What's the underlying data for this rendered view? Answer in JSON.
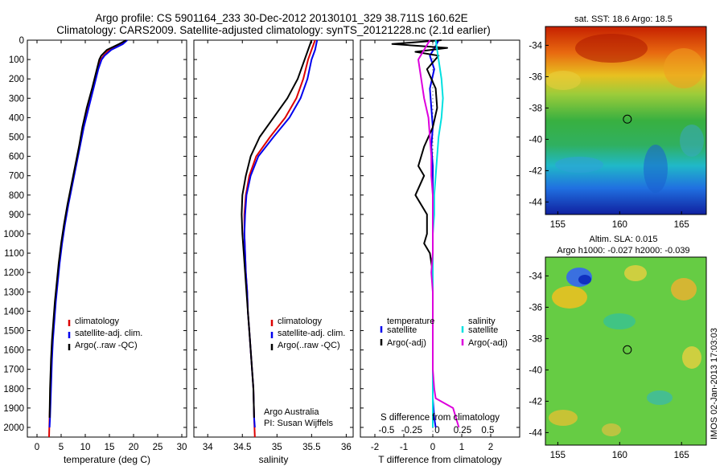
{
  "header": {
    "line1": "Argo profile: CS 5901164_233 30-Dec-2012 20130101_329 38.711S 160.62E",
    "line2": "Climatology: CARS2009. Satellite-adjusted climatology: synTS_20121228.nc (2.1d earlier)"
  },
  "side_label": "IMOS 02-Jan-2013 17:03:03",
  "chart_data": [
    {
      "type": "line",
      "id": "temperature",
      "xlabel": "temperature (deg C)",
      "ylabel": "",
      "xlim": [
        -2,
        31
      ],
      "ylim": [
        0,
        2050
      ],
      "x_ticks": [
        0,
        5,
        10,
        15,
        20,
        25,
        30
      ],
      "y_ticks": [
        0,
        100,
        200,
        300,
        400,
        500,
        600,
        700,
        800,
        900,
        1000,
        1100,
        1200,
        1300,
        1400,
        1500,
        1600,
        1700,
        1800,
        1900,
        2000
      ],
      "legend": [
        "climatology",
        "satellite-adj. clim.",
        "Argo(..raw -QC)"
      ],
      "legend_placement": "lower-middle",
      "series": [
        {
          "name": "climatology",
          "color": "#dd0000",
          "x": [
            18.6,
            17.5,
            15.0,
            13.8,
            13.2,
            12.5,
            11.5,
            10.5,
            9.5,
            8.8,
            8.0,
            7.2,
            6.4,
            5.7,
            5.1,
            4.6,
            4.2,
            3.8,
            3.5,
            3.2,
            3.0,
            2.8,
            2.6,
            2.5
          ],
          "y": [
            0,
            20,
            50,
            80,
            100,
            150,
            250,
            350,
            450,
            550,
            650,
            750,
            850,
            950,
            1050,
            1150,
            1250,
            1350,
            1450,
            1550,
            1650,
            1800,
            1950,
            2050
          ]
        },
        {
          "name": "satellite-adj. clim.",
          "color": "#0000ee",
          "x": [
            18.7,
            17.8,
            15.4,
            14.0,
            13.4,
            12.7,
            11.7,
            10.7,
            9.7,
            8.9,
            8.1,
            7.3,
            6.5,
            5.8,
            5.2,
            4.7,
            4.3,
            3.9,
            3.6,
            3.3,
            3.1,
            2.9,
            2.7,
            2.6
          ],
          "y": [
            0,
            20,
            50,
            80,
            100,
            150,
            250,
            350,
            450,
            550,
            650,
            750,
            850,
            950,
            1050,
            1150,
            1250,
            1350,
            1450,
            1550,
            1650,
            1800,
            1950,
            2000
          ]
        },
        {
          "name": "Argo(..raw -QC)",
          "color": "#000000",
          "x": [
            18.5,
            17.0,
            14.5,
            13.3,
            12.9,
            12.4,
            11.4,
            10.3,
            9.4,
            8.7,
            7.9,
            7.1,
            6.3,
            5.6,
            5.0,
            4.5,
            4.1,
            3.7,
            3.4,
            3.1,
            2.9,
            2.7,
            2.6
          ],
          "y": [
            0,
            20,
            50,
            80,
            100,
            150,
            250,
            350,
            450,
            550,
            650,
            750,
            850,
            950,
            1050,
            1150,
            1250,
            1350,
            1450,
            1550,
            1650,
            1800,
            1950
          ]
        }
      ]
    },
    {
      "type": "line",
      "id": "salinity",
      "xlabel": "salinity",
      "xlim": [
        33.8,
        36.1
      ],
      "ylim": [
        0,
        2050
      ],
      "x_ticks": [
        34,
        34.5,
        35,
        35.5,
        36
      ],
      "legend": [
        "climatology",
        "satellite-adj. clim.",
        "Argo(..raw -QC)"
      ],
      "legend_placement": "lower-middle",
      "annotation": [
        "Argo Australia",
        "PI: Susan Wijffels"
      ],
      "series": [
        {
          "name": "climatology",
          "color": "#dd0000",
          "x": [
            35.55,
            35.5,
            35.45,
            35.38,
            35.28,
            35.12,
            34.9,
            34.7,
            34.6,
            34.55,
            34.53,
            34.53,
            34.54,
            34.55,
            34.57,
            34.58,
            34.6,
            34.62,
            34.64,
            34.66,
            34.67,
            34.68
          ],
          "y": [
            0,
            50,
            100,
            200,
            300,
            400,
            500,
            600,
            700,
            800,
            900,
            1000,
            1100,
            1200,
            1300,
            1400,
            1500,
            1600,
            1700,
            1800,
            1950,
            2050
          ]
        },
        {
          "name": "satellite-adj. clim.",
          "color": "#0000ee",
          "x": [
            35.58,
            35.55,
            35.5,
            35.44,
            35.34,
            35.18,
            34.95,
            34.73,
            34.62,
            34.56,
            34.54,
            34.53,
            34.54,
            34.55,
            34.57,
            34.58,
            34.6,
            34.62,
            34.64,
            34.66,
            34.67,
            34.68
          ],
          "y": [
            0,
            50,
            100,
            200,
            300,
            400,
            500,
            600,
            700,
            800,
            900,
            1000,
            1100,
            1200,
            1300,
            1400,
            1500,
            1600,
            1700,
            1800,
            1950,
            2000
          ]
        },
        {
          "name": "Argo(..raw -QC)",
          "color": "#000000",
          "x": [
            35.5,
            35.45,
            35.4,
            35.3,
            35.15,
            34.95,
            34.75,
            34.62,
            34.55,
            34.5,
            34.49,
            34.5,
            34.52,
            34.54,
            34.56,
            34.58,
            34.6,
            34.62,
            34.64,
            34.66,
            34.67
          ],
          "y": [
            0,
            50,
            100,
            200,
            300,
            400,
            500,
            600,
            700,
            800,
            900,
            1000,
            1100,
            1200,
            1300,
            1400,
            1500,
            1600,
            1700,
            1800,
            1950
          ]
        }
      ]
    },
    {
      "type": "line",
      "id": "differences",
      "xlabel": "T difference from climatology",
      "top_label": "S difference from climatology",
      "xlim": [
        -2.5,
        3.0
      ],
      "ylim": [
        0,
        2050
      ],
      "x_ticks": [
        -2,
        -1,
        0,
        1,
        2
      ],
      "s_ticks": [
        -0.5,
        -0.25,
        0,
        0.25,
        0.5
      ],
      "legend": {
        "temperature": [
          "temperature",
          "satellite",
          "Argo(-adj)"
        ],
        "salinity": [
          "salinity",
          "satellite",
          "Argo(-adj)"
        ]
      },
      "legend_placement": "lower-middle",
      "series": [
        {
          "name": "satellite",
          "group": "temperature",
          "color": "#0000ee",
          "x": [
            0.2,
            0.1,
            -0.1,
            0.05,
            -0.1,
            -0.05,
            0.0,
            -0.05,
            0.0,
            0.0,
            0.0,
            0.0,
            0.0,
            0.0,
            0.0,
            0.0,
            0.0,
            0.0,
            0.0,
            0.05,
            0.1
          ],
          "y": [
            0,
            30,
            80,
            150,
            250,
            350,
            450,
            550,
            650,
            750,
            850,
            950,
            1050,
            1150,
            1250,
            1400,
            1550,
            1700,
            1850,
            1950,
            2000
          ]
        },
        {
          "name": "Argo(-adj)",
          "group": "temperature",
          "color": "#000000",
          "x": [
            0.3,
            -1.4,
            0.5,
            -0.6,
            0.2,
            -0.2,
            0.1,
            0.15,
            0.0,
            -0.3,
            -0.5,
            -0.3,
            -0.6,
            -0.2,
            -0.2,
            -0.3,
            -0.1,
            0.0,
            0.0,
            0.0,
            0.0,
            0.0,
            0.0,
            0.0
          ],
          "y": [
            0,
            20,
            40,
            60,
            80,
            150,
            250,
            350,
            450,
            550,
            650,
            700,
            800,
            900,
            1000,
            1050,
            1100,
            1200,
            1300,
            1400,
            1500,
            1600,
            1700,
            1900
          ]
        },
        {
          "name": "satellite",
          "group": "salinity",
          "color": "#00e0e0",
          "x": [
            0.1,
            0.15,
            0.2,
            0.3,
            0.35,
            0.3,
            0.2,
            0.15,
            0.1,
            0.05,
            0.05,
            0.0,
            0.0,
            0.0,
            0.0,
            0.0,
            0.0,
            0.0,
            0.0,
            0.0
          ],
          "y": [
            0,
            50,
            100,
            200,
            300,
            400,
            500,
            600,
            700,
            800,
            900,
            1000,
            1100,
            1200,
            1300,
            1400,
            1500,
            1600,
            1800,
            2000
          ]
        },
        {
          "name": "Argo(-adj)",
          "group": "salinity",
          "color": "#dd00dd",
          "x": [
            -0.1,
            -0.3,
            -0.5,
            -0.4,
            -0.3,
            -0.15,
            -0.1,
            -0.05,
            -0.05,
            0.0,
            0.0,
            0.0,
            0.0,
            -0.05,
            0.0,
            0.0,
            0.0,
            0.0,
            0.0,
            0.05,
            0.1,
            0.7,
            0.9
          ],
          "y": [
            0,
            50,
            100,
            200,
            300,
            400,
            500,
            600,
            700,
            800,
            900,
            1000,
            1100,
            1200,
            1300,
            1400,
            1500,
            1600,
            1700,
            1800,
            1850,
            1900,
            2000
          ]
        }
      ]
    },
    {
      "type": "heatmap",
      "id": "sst-map",
      "title": "sat. SST: 18.6 Argo: 18.5",
      "xlim": [
        154,
        167
      ],
      "ylim": [
        -44.8,
        -32.8
      ],
      "x_ticks": [
        155,
        160,
        165
      ],
      "y_ticks": [
        -34,
        -36,
        -38,
        -40,
        -42,
        -44
      ],
      "marker": {
        "lon": 160.62,
        "lat": -38.711
      }
    },
    {
      "type": "heatmap",
      "id": "sla-map",
      "title": "Altim. SLA: 0.015",
      "subtitle": "Argo h1000: -0.027 h2000: -0.039",
      "xlim": [
        154,
        167
      ],
      "ylim": [
        -44.8,
        -32.8
      ],
      "x_ticks": [
        155,
        160,
        165
      ],
      "y_ticks": [
        -34,
        -36,
        -38,
        -40,
        -42,
        -44
      ],
      "marker": {
        "lon": 160.62,
        "lat": -38.711
      }
    }
  ]
}
